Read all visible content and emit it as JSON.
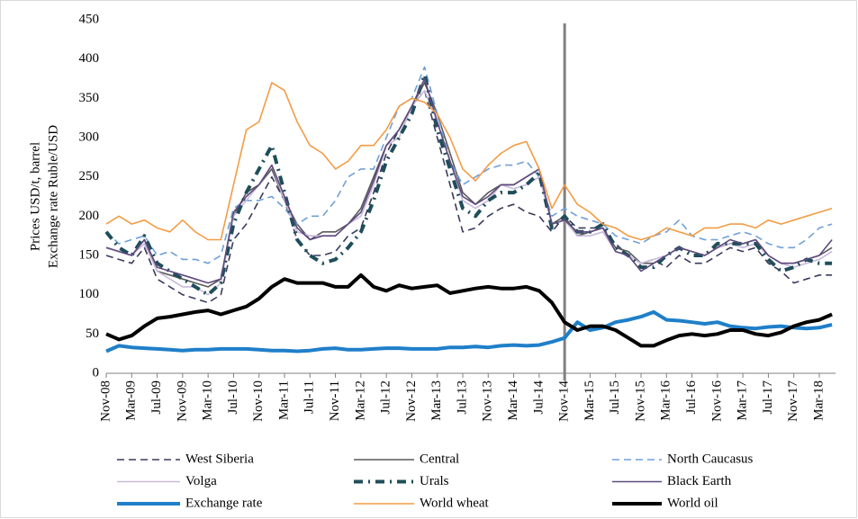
{
  "chart_data": {
    "type": "line",
    "y_label": [
      "Prices USD/t, barrel",
      "Exchange rate Ruble/USD"
    ],
    "categories": [
      "Nov-08",
      null,
      "Mar-09",
      null,
      "Jul-09",
      null,
      "Nov-09",
      null,
      "Mar-10",
      null,
      "Jul-10",
      null,
      "Nov-10",
      null,
      "Mar-11",
      null,
      "Jul-11",
      null,
      "Nov-11",
      null,
      "Mar-12",
      null,
      "Jul-12",
      null,
      "Nov-12",
      null,
      "Mar-13",
      null,
      "Jul-13",
      null,
      "Nov-13",
      null,
      "Mar-14",
      null,
      "Jul-14",
      null,
      "Nov-14",
      null,
      "Mar-15",
      null,
      "Jul-15",
      null,
      "Nov-15",
      null,
      "Mar-16",
      null,
      "Jul-16",
      null,
      "Nov-16",
      null,
      "Mar-17",
      null,
      "Jul-17",
      null,
      "Nov-17",
      null,
      "Mar-18",
      null
    ],
    "ylim": [
      0,
      450
    ],
    "yticks": [
      0,
      50,
      100,
      150,
      200,
      250,
      300,
      350,
      400,
      450
    ],
    "grid": false,
    "vline": "Nov-14",
    "vline_color": "#808080",
    "legend": "bottom",
    "series": [
      {
        "name": "West Siberia",
        "color": "#3a3a5c",
        "style": "dashed",
        "weight": "normal",
        "values": [
          150,
          145,
          140,
          160,
          120,
          110,
          100,
          95,
          90,
          100,
          170,
          190,
          220,
          250,
          220,
          170,
          150,
          150,
          155,
          175,
          185,
          230,
          280,
          310,
          340,
          360,
          300,
          240,
          180,
          185,
          200,
          210,
          215,
          205,
          200,
          180,
          200,
          185,
          185,
          185,
          165,
          150,
          140,
          145,
          135,
          150,
          140,
          140,
          150,
          160,
          155,
          160,
          140,
          130,
          115,
          120,
          125,
          125
        ]
      },
      {
        "name": "Central",
        "color": "#595959",
        "style": "solid",
        "weight": "normal",
        "values": [
          160,
          155,
          150,
          170,
          130,
          125,
          120,
          115,
          110,
          120,
          200,
          230,
          240,
          260,
          220,
          190,
          170,
          180,
          180,
          190,
          210,
          250,
          290,
          310,
          340,
          370,
          330,
          280,
          230,
          215,
          230,
          240,
          240,
          250,
          260,
          190,
          200,
          175,
          180,
          185,
          160,
          155,
          140,
          140,
          150,
          160,
          155,
          150,
          160,
          165,
          165,
          170,
          150,
          140,
          140,
          145,
          150,
          160
        ]
      },
      {
        "name": "North Caucasus",
        "color": "#6fa0d8",
        "style": "dashed",
        "weight": "normal",
        "values": [
          180,
          165,
          170,
          175,
          150,
          155,
          145,
          145,
          140,
          150,
          210,
          220,
          220,
          225,
          210,
          190,
          200,
          200,
          220,
          250,
          260,
          260,
          300,
          340,
          350,
          390,
          330,
          270,
          240,
          250,
          260,
          265,
          265,
          270,
          250,
          200,
          210,
          200,
          195,
          190,
          175,
          170,
          165,
          175,
          180,
          195,
          175,
          170,
          170,
          175,
          180,
          175,
          165,
          160,
          160,
          170,
          185,
          190
        ]
      },
      {
        "name": "Volga",
        "color": "#c8badc",
        "style": "solid",
        "weight": "normal",
        "values": [
          160,
          155,
          150,
          165,
          130,
          120,
          110,
          110,
          100,
          115,
          200,
          220,
          240,
          265,
          220,
          180,
          175,
          175,
          175,
          190,
          200,
          240,
          290,
          300,
          340,
          360,
          320,
          270,
          220,
          210,
          220,
          240,
          235,
          240,
          250,
          190,
          195,
          175,
          175,
          180,
          155,
          150,
          140,
          145,
          150,
          160,
          155,
          150,
          160,
          165,
          160,
          165,
          150,
          140,
          135,
          140,
          145,
          155
        ]
      },
      {
        "name": "Urals",
        "color": "#1f4e5a",
        "style": "dash-dot",
        "weight": "thick",
        "values": [
          180,
          160,
          150,
          175,
          140,
          130,
          120,
          110,
          100,
          115,
          190,
          230,
          260,
          290,
          230,
          170,
          150,
          140,
          145,
          160,
          180,
          220,
          270,
          300,
          330,
          380,
          310,
          260,
          210,
          200,
          220,
          230,
          230,
          240,
          255,
          185,
          200,
          180,
          180,
          190,
          160,
          150,
          135,
          135,
          150,
          160,
          150,
          150,
          165,
          165,
          165,
          165,
          145,
          130,
          135,
          145,
          140,
          140
        ]
      },
      {
        "name": "Black Earth",
        "color": "#5e4a7e",
        "style": "solid",
        "weight": "normal",
        "values": [
          160,
          155,
          150,
          170,
          135,
          130,
          125,
          120,
          115,
          120,
          205,
          225,
          240,
          265,
          225,
          185,
          170,
          175,
          175,
          190,
          205,
          245,
          290,
          310,
          340,
          375,
          320,
          270,
          225,
          215,
          225,
          240,
          240,
          250,
          260,
          190,
          195,
          180,
          180,
          185,
          155,
          150,
          130,
          140,
          150,
          160,
          155,
          150,
          160,
          170,
          165,
          170,
          150,
          140,
          140,
          145,
          150,
          170
        ]
      },
      {
        "name": "Exchange rate",
        "color": "#1f7fc9",
        "style": "solid",
        "weight": "thick",
        "values": [
          28,
          35,
          33,
          32,
          31,
          30,
          29,
          30,
          30,
          31,
          31,
          31,
          30,
          29,
          29,
          28,
          29,
          31,
          32,
          30,
          30,
          31,
          32,
          32,
          31,
          31,
          31,
          33,
          33,
          34,
          33,
          35,
          36,
          35,
          36,
          40,
          45,
          65,
          55,
          58,
          65,
          68,
          72,
          78,
          68,
          67,
          65,
          63,
          65,
          60,
          58,
          57,
          59,
          60,
          58,
          57,
          58,
          62
        ]
      },
      {
        "name": "World wheat",
        "color": "#f39c45",
        "style": "solid",
        "weight": "normal",
        "values": [
          190,
          200,
          190,
          195,
          185,
          180,
          195,
          180,
          170,
          170,
          240,
          310,
          320,
          370,
          360,
          320,
          290,
          280,
          260,
          270,
          290,
          290,
          310,
          340,
          350,
          345,
          330,
          300,
          260,
          245,
          265,
          280,
          290,
          295,
          260,
          210,
          240,
          215,
          205,
          190,
          185,
          175,
          170,
          175,
          185,
          180,
          175,
          185,
          185,
          190,
          190,
          185,
          195,
          190,
          195,
          200,
          205,
          210
        ]
      },
      {
        "name": "World oil",
        "color": "#000000",
        "style": "solid",
        "weight": "thick",
        "values": [
          50,
          43,
          48,
          60,
          70,
          72,
          75,
          78,
          80,
          75,
          80,
          85,
          95,
          110,
          120,
          115,
          115,
          115,
          110,
          110,
          125,
          110,
          105,
          112,
          108,
          110,
          112,
          102,
          105,
          108,
          110,
          108,
          108,
          110,
          105,
          90,
          65,
          55,
          60,
          60,
          55,
          45,
          35,
          35,
          42,
          48,
          50,
          48,
          50,
          55,
          55,
          50,
          48,
          52,
          60,
          65,
          68,
          75
        ]
      }
    ]
  }
}
